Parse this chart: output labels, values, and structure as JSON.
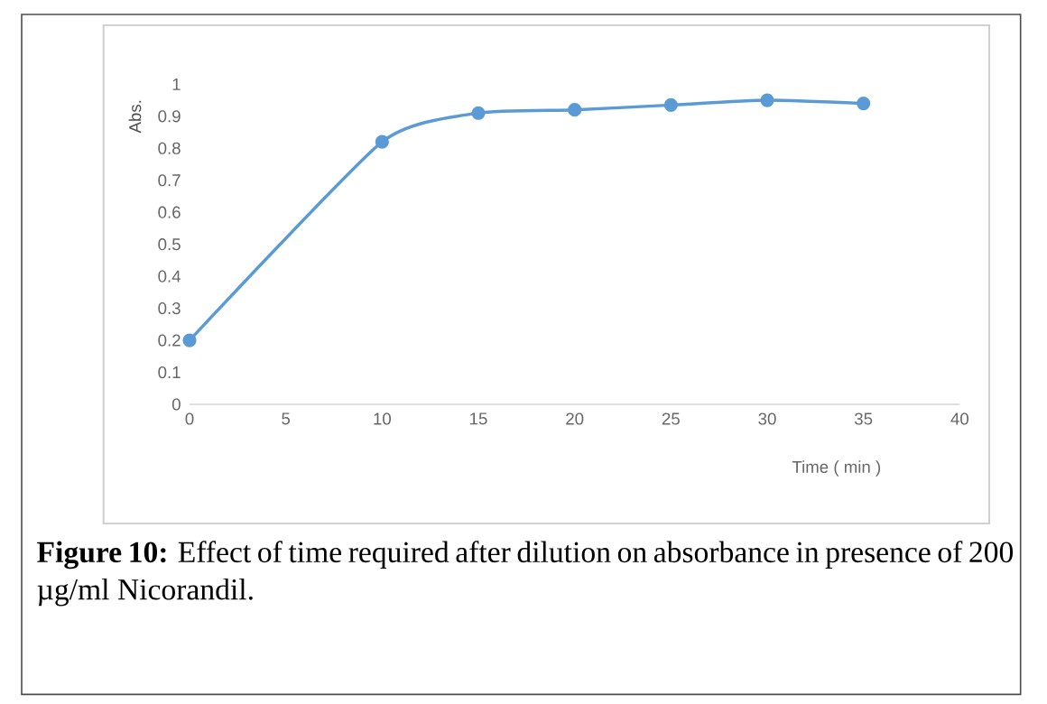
{
  "chart_data": {
    "type": "line",
    "xlabel": "Time ( min )",
    "ylabel": "Abs.",
    "x": [
      0,
      10,
      15,
      20,
      25,
      30,
      35
    ],
    "series": [
      {
        "color": "#5b9bd5",
        "values": [
          0.2,
          0.82,
          0.91,
          0.92,
          0.935,
          0.95,
          0.94
        ]
      }
    ],
    "xlim": [
      0,
      40
    ],
    "xticks": [
      0,
      5,
      10,
      15,
      20,
      25,
      30,
      35,
      40
    ],
    "ylim": [
      0,
      1
    ],
    "yticks": [
      0,
      0.1,
      0.2,
      0.3,
      0.4,
      0.5,
      0.6,
      0.7,
      0.8,
      0.9,
      1
    ],
    "grid": false,
    "marker": "circle",
    "line_style": "solid",
    "annotations": [
      "**Figure 10:** Effect of time required after dilution on absorbance in presence of 200 µg/ml Nicorandil."
    ]
  }
}
